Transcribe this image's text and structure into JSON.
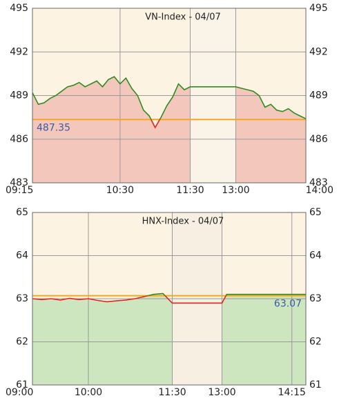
{
  "chart_data": [
    {
      "type": "line",
      "title": "VN-Index - 04/07",
      "x": [
        555,
        560,
        565,
        570,
        575,
        580,
        585,
        590,
        595,
        600,
        605,
        610,
        615,
        620,
        625,
        630,
        635,
        640,
        645,
        650,
        655,
        660,
        665,
        670,
        675,
        680,
        685,
        690,
        780,
        785,
        790,
        795,
        800,
        805,
        810,
        815,
        820,
        825,
        830,
        835,
        840
      ],
      "series": [
        {
          "color": "#2e8b1e",
          "values": [
            489.2,
            488.4,
            488.5,
            488.8,
            489.0,
            489.3,
            489.6,
            489.7,
            489.9,
            489.6,
            489.8,
            490.0,
            489.6,
            490.1,
            490.3,
            489.8,
            490.2,
            489.5,
            489.0,
            488.0,
            487.6,
            486.8,
            487.5,
            488.3,
            488.9,
            489.8,
            489.4,
            489.6,
            489.6,
            489.5,
            489.4,
            489.3,
            489.0,
            488.2,
            488.4,
            488.0,
            487.9,
            488.1,
            487.8,
            487.6,
            487.4
          ]
        }
      ],
      "below_color": "#e0261b",
      "fill_color": "#f4c7bd",
      "background": "#fdf3e3",
      "break_color": "#faf3e8",
      "reference": 487.35,
      "reference_color": "#f5a623",
      "reference_label_position": "left",
      "xlim": [
        555,
        840
      ],
      "break": [
        690,
        780
      ],
      "xticks": [
        {
          "value": 555,
          "label": "09:15"
        },
        {
          "value": 630,
          "label": "10:30"
        },
        {
          "value": 690,
          "label": "11:30"
        },
        {
          "value": 780,
          "label": "13:00"
        },
        {
          "value": 840,
          "label": "14:00"
        }
      ],
      "ylim": [
        483,
        495
      ],
      "yticks": [
        483,
        486,
        489,
        492,
        495
      ],
      "grid": true
    },
    {
      "type": "line",
      "title": "HNX-Index - 04/07",
      "x": [
        540,
        550,
        560,
        570,
        580,
        590,
        600,
        610,
        620,
        630,
        640,
        650,
        660,
        670,
        680,
        690,
        780,
        785,
        800,
        820,
        840,
        855,
        870
      ],
      "series": [
        {
          "color": "#2e8b1e",
          "values": [
            63.0,
            62.98,
            63.0,
            62.97,
            63.01,
            62.98,
            63.0,
            62.96,
            62.93,
            62.95,
            62.97,
            63.0,
            63.05,
            63.1,
            63.12,
            62.9,
            62.9,
            63.1,
            63.1,
            63.1,
            63.1,
            63.1,
            63.1
          ]
        }
      ],
      "below_color": "#e0261b",
      "fill_color": "#cde6c0",
      "background": "#fdf3e3",
      "break_color": "#f7efe1",
      "reference": 63.07,
      "reference_color": "#f5a623",
      "reference_label_position": "right",
      "xlim": [
        540,
        870
      ],
      "break": [
        690,
        780
      ],
      "xticks": [
        {
          "value": 540,
          "label": "09:00"
        },
        {
          "value": 600,
          "label": "10:00"
        },
        {
          "value": 690,
          "label": "11:30"
        },
        {
          "value": 780,
          "label": "13:00"
        },
        {
          "value": 855,
          "label": "14:15"
        }
      ],
      "ylim": [
        61,
        65
      ],
      "yticks": [
        61,
        62,
        63,
        64,
        65
      ],
      "grid": true
    }
  ]
}
